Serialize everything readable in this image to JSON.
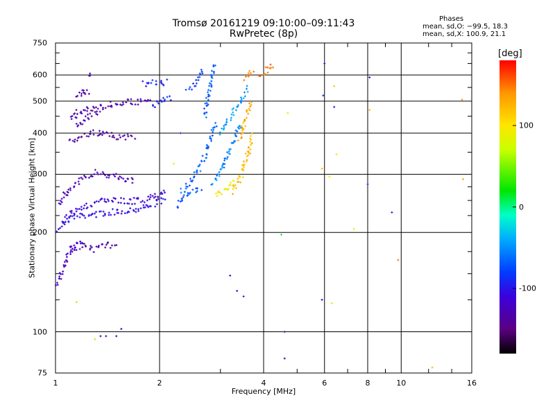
{
  "chart_data": {
    "type": "scatter",
    "title": "Tromsø 20161219 09:10:00–09:11:43",
    "subtitle": "RwPretec (8p)",
    "xlabel": "Frequency [MHz]",
    "ylabel": "Stationary phase Virtual Height [km]",
    "x_scale": "log",
    "y_scale": "log",
    "xlim": [
      1,
      16
    ],
    "ylim": [
      75,
      750
    ],
    "x_ticks": [
      1,
      2,
      4,
      6,
      8,
      10,
      16
    ],
    "x_tick_labels": [
      "1",
      "2",
      "4",
      "6",
      "8",
      "10",
      "16"
    ],
    "y_ticks": [
      75,
      100,
      200,
      300,
      400,
      500,
      600,
      750
    ],
    "y_tick_labels": [
      "75",
      "100",
      "200",
      "300",
      "400",
      "500",
      "600",
      "750"
    ],
    "grid": true,
    "phases": {
      "title": "Phases",
      "o_mode": "mean, sd,O: −99.5, 18.3",
      "x_mode": "mean, sd,X: 100.9, 21.1"
    },
    "colorbar": {
      "unit": "[deg]",
      "ticks": [
        100,
        0,
        -100
      ],
      "tick_labels": [
        "100",
        "0",
        "-100"
      ],
      "range": [
        -180,
        180
      ],
      "colormap": "rainbow (black at -180, violet, blue, cyan, green, yellow, orange, red at +180)"
    },
    "series": [
      {
        "traces": [
          {
            "x": [
              1.02,
              1.05,
              1.08,
              1.12,
              1.18,
              1.25,
              1.35,
              1.45,
              1.55,
              1.7,
              1.85,
              2.0,
              2.1
            ],
            "y": [
              205,
              212,
              218,
              222,
              224,
              226,
              228,
              230,
              232,
              235,
              240,
              248,
              255
            ],
            "phase": -105
          },
          {
            "x": [
              1.05,
              1.1,
              1.15,
              1.2,
              1.3,
              1.4,
              1.5,
              1.6,
              1.75,
              1.9,
              2.0,
              2.1
            ],
            "y": [
              215,
              225,
              235,
              240,
              245,
              250,
              250,
              248,
              250,
              255,
              262,
              270
            ],
            "phase": -112
          },
          {
            "x": [
              1.02,
              1.05,
              1.08,
              1.1,
              1.15,
              1.2,
              1.3,
              1.4,
              1.5,
              1.6,
              1.7
            ],
            "y": [
              245,
              255,
              265,
              272,
              280,
              290,
              305,
              300,
              295,
              290,
              285
            ],
            "phase": -125
          },
          {
            "x": [
              1.0,
              1.03,
              1.06,
              1.1,
              1.15,
              1.2
            ],
            "y": [
              140,
              145,
              160,
              175,
              185,
              190
            ],
            "phase": -120
          },
          {
            "x": [
              1.1,
              1.15,
              1.2,
              1.25,
              1.3,
              1.35,
              1.4,
              1.5
            ],
            "y": [
              175,
              180,
              182,
              180,
              178,
              180,
              182,
              185
            ],
            "phase": -130
          },
          {
            "x": [
              1.1,
              1.15,
              1.2,
              1.25,
              1.3,
              1.35,
              1.4,
              1.5,
              1.6,
              1.7
            ],
            "y": [
              380,
              385,
              390,
              395,
              400,
              398,
              395,
              390,
              390,
              388
            ],
            "phase": -135
          },
          {
            "x": [
              1.1,
              1.15,
              1.2,
              1.3,
              1.4,
              1.5,
              1.6,
              1.7,
              1.8,
              1.9
            ],
            "y": [
              440,
              460,
              470,
              475,
              485,
              492,
              495,
              498,
              500,
              500
            ],
            "phase": -132
          },
          {
            "x": [
              1.15,
              1.2,
              1.22,
              1.25,
              1.3,
              1.35
            ],
            "y": [
              420,
              430,
              440,
              450,
              460,
              470
            ],
            "phase": -128
          },
          {
            "x": [
              1.15,
              1.18,
              1.2,
              1.22,
              1.25
            ],
            "y": [
              520,
              530,
              540,
              530,
              525
            ],
            "phase": -130
          },
          {
            "x": [
              1.25,
              1.27
            ],
            "y": [
              600,
              600
            ],
            "phase": -120
          },
          {
            "x": [
              1.9,
              1.95,
              2.0,
              2.05,
              2.1,
              2.15
            ],
            "y": [
              480,
              490,
              500,
              505,
              510,
              512
            ],
            "phase": -95
          },
          {
            "x": [
              1.8,
              1.9,
              2.0,
              2.05,
              2.1
            ],
            "y": [
              565,
              566,
              568,
              568,
              570
            ],
            "phase": -90
          },
          {
            "x": [
              2.25,
              2.35,
              2.45,
              2.55,
              2.65
            ],
            "y": [
              240,
              255,
              265,
              270,
              275
            ],
            "phase": -75
          },
          {
            "x": [
              2.3,
              2.4,
              2.5,
              2.6,
              2.7,
              2.8,
              2.9
            ],
            "y": [
              265,
              275,
              290,
              310,
              340,
              380,
              430
            ],
            "phase": -65
          },
          {
            "x": [
              2.7,
              2.75,
              2.8,
              2.85,
              2.9
            ],
            "y": [
              450,
              500,
              560,
              620,
              650
            ],
            "phase": -70
          },
          {
            "x": [
              2.4,
              2.5,
              2.6,
              2.7
            ],
            "y": [
              540,
              560,
              590,
              620
            ],
            "phase": -85
          },
          {
            "x": [
              2.85,
              2.95,
              3.05,
              3.15,
              3.25,
              3.35,
              3.45
            ],
            "y": [
              280,
              300,
              320,
              345,
              370,
              400,
              430
            ],
            "phase": -55
          },
          {
            "x": [
              3.0,
              3.1,
              3.2,
              3.3,
              3.4,
              3.5,
              3.6
            ],
            "y": [
              400,
              430,
              450,
              470,
              490,
              520,
              550
            ],
            "phase": -45
          },
          {
            "x": [
              2.9,
              3.0,
              3.1,
              3.2,
              3.3
            ],
            "y": [
              260,
              265,
              270,
              275,
              285
            ],
            "phase": 95
          },
          {
            "x": [
              3.25,
              3.35,
              3.45,
              3.55,
              3.65,
              3.7
            ],
            "y": [
              265,
              280,
              300,
              330,
              360,
              400
            ],
            "phase": 120
          },
          {
            "x": [
              3.4,
              3.5,
              3.6,
              3.7
            ],
            "y": [
              380,
              420,
              460,
              500
            ],
            "phase": 130
          },
          {
            "x": [
              3.55,
              3.65,
              3.75
            ],
            "y": [
              580,
              600,
              620
            ],
            "phase": 140
          },
          {
            "x": [
              3.9,
              4.0,
              4.1,
              4.2,
              4.3
            ],
            "y": [
              590,
              605,
              620,
              635,
              645
            ],
            "phase": 150
          }
        ]
      },
      {
        "scatter_points": [
          {
            "x": 1.35,
            "y": 97,
            "phase": -130
          },
          {
            "x": 1.4,
            "y": 97,
            "phase": -128
          },
          {
            "x": 1.5,
            "y": 97,
            "phase": -125
          },
          {
            "x": 1.55,
            "y": 102,
            "phase": -120
          },
          {
            "x": 1.3,
            "y": 95,
            "phase": 60
          },
          {
            "x": 1.15,
            "y": 123,
            "phase": 60
          },
          {
            "x": 3.2,
            "y": 148,
            "phase": -110
          },
          {
            "x": 3.35,
            "y": 133,
            "phase": -100
          },
          {
            "x": 3.5,
            "y": 128,
            "phase": -105
          },
          {
            "x": 4.6,
            "y": 100,
            "phase": -120
          },
          {
            "x": 4.6,
            "y": 83,
            "phase": -115
          },
          {
            "x": 4.5,
            "y": 197,
            "phase": 10
          },
          {
            "x": 5.9,
            "y": 125,
            "phase": -110
          },
          {
            "x": 6.3,
            "y": 122,
            "phase": 90
          },
          {
            "x": 5.9,
            "y": 312,
            "phase": 120
          },
          {
            "x": 6.2,
            "y": 295,
            "phase": 100
          },
          {
            "x": 6.0,
            "y": 650,
            "phase": -100
          },
          {
            "x": 5.95,
            "y": 520,
            "phase": -90
          },
          {
            "x": 6.4,
            "y": 555,
            "phase": 120
          },
          {
            "x": 6.4,
            "y": 480,
            "phase": -110
          },
          {
            "x": 6.5,
            "y": 345,
            "phase": 100
          },
          {
            "x": 7.3,
            "y": 205,
            "phase": 70
          },
          {
            "x": 8.0,
            "y": 280,
            "phase": -90
          },
          {
            "x": 8.1,
            "y": 590,
            "phase": -110
          },
          {
            "x": 8.1,
            "y": 470,
            "phase": 120
          },
          {
            "x": 9.4,
            "y": 230,
            "phase": -100
          },
          {
            "x": 9.8,
            "y": 165,
            "phase": 150
          },
          {
            "x": 12.3,
            "y": 78,
            "phase": 120
          },
          {
            "x": 15.0,
            "y": 505,
            "phase": 140
          },
          {
            "x": 15.1,
            "y": 290,
            "phase": 130
          },
          {
            "x": 4.7,
            "y": 460,
            "phase": 90
          },
          {
            "x": 2.3,
            "y": 400,
            "phase": -90
          },
          {
            "x": 2.2,
            "y": 323,
            "phase": 80
          },
          {
            "x": 1.15,
            "y": 445,
            "phase": -120
          }
        ]
      }
    ]
  }
}
